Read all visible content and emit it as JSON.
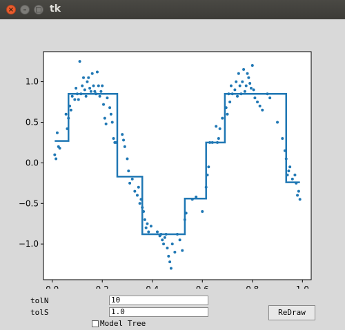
{
  "window": {
    "title": "tk",
    "close_glyph": "×",
    "min_glyph": "–",
    "max_glyph": "□"
  },
  "controls": {
    "toln_label": "tolN",
    "toln_value": "10",
    "tols_label": "tolS",
    "tols_value": "1.0",
    "model_tree_label": "Model Tree",
    "model_tree_checked": false,
    "redraw_label": "ReDraw"
  },
  "chart_data": {
    "type": "line",
    "title": "",
    "xlabel": "",
    "ylabel": "",
    "xlim": [
      -0.035,
      1.035
    ],
    "ylim": [
      -1.44,
      1.37
    ],
    "x_ticks": [
      0.0,
      0.2,
      0.4,
      0.6,
      0.8,
      1.0
    ],
    "x_tick_labels": [
      "0.0",
      "0.2",
      "0.4",
      "0.6",
      "0.8",
      "1.0"
    ],
    "y_ticks": [
      -1.0,
      -0.5,
      0.0,
      0.5,
      1.0
    ],
    "y_tick_labels": [
      "−1.0",
      "−0.5",
      "0.0",
      "0.5",
      "1.0"
    ],
    "grid": false,
    "colors": {
      "points": "#1f77b4",
      "line": "#1f77b4"
    },
    "series": [
      {
        "kind": "scatter",
        "x": [
          0.01,
          0.015,
          0.02,
          0.025,
          0.03,
          0.055,
          0.06,
          0.065,
          0.07,
          0.075,
          0.08,
          0.09,
          0.095,
          0.1,
          0.105,
          0.11,
          0.115,
          0.12,
          0.125,
          0.13,
          0.135,
          0.14,
          0.145,
          0.15,
          0.155,
          0.16,
          0.165,
          0.17,
          0.175,
          0.18,
          0.185,
          0.19,
          0.195,
          0.2,
          0.205,
          0.21,
          0.215,
          0.22,
          0.23,
          0.235,
          0.24,
          0.245,
          0.25,
          0.255,
          0.28,
          0.285,
          0.29,
          0.3,
          0.305,
          0.31,
          0.32,
          0.33,
          0.34,
          0.345,
          0.35,
          0.355,
          0.36,
          0.365,
          0.37,
          0.375,
          0.38,
          0.385,
          0.395,
          0.42,
          0.43,
          0.435,
          0.44,
          0.445,
          0.45,
          0.455,
          0.46,
          0.465,
          0.47,
          0.475,
          0.48,
          0.49,
          0.5,
          0.51,
          0.52,
          0.53,
          0.535,
          0.56,
          0.575,
          0.6,
          0.615,
          0.62,
          0.625,
          0.63,
          0.64,
          0.655,
          0.66,
          0.665,
          0.67,
          0.68,
          0.695,
          0.7,
          0.705,
          0.71,
          0.715,
          0.72,
          0.73,
          0.735,
          0.74,
          0.745,
          0.75,
          0.755,
          0.76,
          0.765,
          0.77,
          0.775,
          0.78,
          0.785,
          0.79,
          0.795,
          0.8,
          0.805,
          0.81,
          0.82,
          0.83,
          0.84,
          0.86,
          0.87,
          0.9,
          0.92,
          0.93,
          0.935,
          0.94,
          0.945,
          0.95,
          0.96,
          0.97,
          0.975,
          0.98,
          0.985,
          0.99
        ],
        "y": [
          0.1,
          0.05,
          0.37,
          0.2,
          0.18,
          0.6,
          0.42,
          0.55,
          0.7,
          0.65,
          0.82,
          0.78,
          0.92,
          0.85,
          0.78,
          1.25,
          0.85,
          0.95,
          1.05,
          0.9,
          0.82,
          1.0,
          1.05,
          0.92,
          0.88,
          1.1,
          0.95,
          0.88,
          0.85,
          1.12,
          0.95,
          0.82,
          0.88,
          0.95,
          0.72,
          0.55,
          0.48,
          0.8,
          0.68,
          0.6,
          0.5,
          0.3,
          0.25,
          0.25,
          0.35,
          0.28,
          0.2,
          0.05,
          -0.1,
          -0.25,
          -0.2,
          -0.35,
          -0.4,
          -0.3,
          -0.5,
          -0.45,
          -0.55,
          -0.6,
          -0.7,
          -0.8,
          -0.75,
          -0.85,
          -0.78,
          -0.85,
          -0.9,
          -0.88,
          -0.95,
          -1.0,
          -0.92,
          -0.88,
          -1.05,
          -1.15,
          -1.22,
          -1.3,
          -1.0,
          -1.1,
          -0.88,
          -0.95,
          -1.08,
          -0.7,
          -0.62,
          -0.45,
          -0.42,
          -0.6,
          -0.3,
          -0.15,
          -0.05,
          0.25,
          0.25,
          0.45,
          0.25,
          0.3,
          0.42,
          0.55,
          0.68,
          0.6,
          0.85,
          0.75,
          0.95,
          0.85,
          0.9,
          1.0,
          0.82,
          1.1,
          0.95,
          0.85,
          1.0,
          1.15,
          0.88,
          0.95,
          1.1,
          1.05,
          0.98,
          0.92,
          1.2,
          0.9,
          0.8,
          0.75,
          0.7,
          0.65,
          0.85,
          0.8,
          0.5,
          0.3,
          0.15,
          0.05,
          -0.15,
          -0.1,
          -0.05,
          -0.2,
          -0.15,
          -0.25,
          -0.4,
          -0.35,
          -0.45
        ]
      },
      {
        "kind": "line",
        "x": [
          0.01,
          0.065,
          0.065,
          0.26,
          0.26,
          0.36,
          0.36,
          0.53,
          0.53,
          0.615,
          0.615,
          0.69,
          0.69,
          0.935,
          0.935,
          0.99
        ],
        "y": [
          0.27,
          0.27,
          0.85,
          0.85,
          -0.17,
          -0.17,
          -0.88,
          -0.88,
          -0.44,
          -0.44,
          0.25,
          0.25,
          0.85,
          0.85,
          -0.24,
          -0.24
        ]
      }
    ]
  }
}
